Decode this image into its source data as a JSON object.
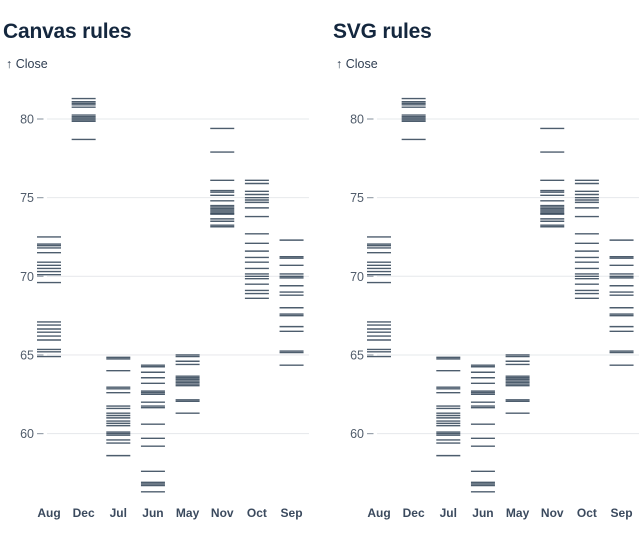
{
  "figures": [
    {
      "title": "Canvas rules",
      "y_axis_label": "↑ Close",
      "renderer": "canvas"
    },
    {
      "title": "SVG rules",
      "y_axis_label": "↑ Close",
      "renderer": "svg"
    }
  ],
  "chart_data": {
    "type": "tick",
    "mark": "horizontal-rule-per-day",
    "title": "Close price ticks by month (rendered twice: canvas and svg)",
    "xlabel": "",
    "ylabel": "Close",
    "categories": [
      "Aug",
      "Dec",
      "Jul",
      "Jun",
      "May",
      "Nov",
      "Oct",
      "Sep"
    ],
    "yticks": [
      80,
      75,
      70,
      65,
      60
    ],
    "ylim": [
      56.0,
      81.5
    ],
    "grid": true,
    "series": {
      "Aug": [
        72.5,
        72.05,
        71.95,
        71.8,
        71.5,
        70.9,
        70.7,
        70.5,
        70.3,
        70.1,
        69.6,
        67.1,
        66.9,
        66.65,
        66.45,
        66.2,
        65.95,
        65.35,
        65.2,
        64.9
      ],
      "Dec": [
        81.3,
        81.1,
        81.0,
        80.9,
        80.75,
        80.25,
        80.15,
        80.05,
        79.95,
        79.85,
        78.7
      ],
      "Jul": [
        64.85,
        64.75,
        64.0,
        62.95,
        62.85,
        62.6,
        61.75,
        61.6,
        61.3,
        61.15,
        61.0,
        60.8,
        60.65,
        60.5,
        60.1,
        60.0,
        59.9,
        59.6,
        59.4,
        58.6
      ],
      "Jun": [
        64.35,
        64.25,
        63.9,
        63.55,
        63.2,
        62.7,
        62.6,
        62.5,
        62.0,
        61.75,
        61.65,
        60.6,
        59.7,
        59.2,
        57.6,
        56.9,
        56.8,
        56.7,
        56.3
      ],
      "May": [
        65.0,
        64.9,
        64.6,
        64.4,
        63.65,
        63.55,
        63.45,
        63.35,
        63.25,
        63.15,
        63.05,
        62.15,
        62.05,
        61.3
      ],
      "Nov": [
        79.4,
        77.9,
        76.1,
        75.45,
        75.35,
        75.15,
        74.8,
        74.5,
        74.4,
        74.3,
        74.2,
        74.1,
        74.0,
        73.95,
        73.65,
        73.5,
        73.25,
        73.15
      ],
      "Oct": [
        76.1,
        75.9,
        75.4,
        75.2,
        75.0,
        74.85,
        74.7,
        74.35,
        73.8,
        72.7,
        72.1,
        71.6,
        71.2,
        70.9,
        70.5,
        70.15,
        70.0,
        69.85,
        69.5,
        69.1,
        68.9,
        68.6
      ],
      "Sep": [
        72.3,
        71.25,
        71.15,
        70.7,
        70.15,
        70.0,
        69.9,
        69.4,
        69.0,
        68.8,
        68.0,
        67.6,
        67.5,
        66.8,
        66.5,
        65.25,
        65.15,
        64.35
      ]
    },
    "colors": {
      "rule": "#2e4154",
      "grid": "#e6e8eb",
      "tick_dash": "#9aa3ad",
      "axis_text": "#505c6b",
      "month_text": "#3b4a5e",
      "title_text": "#14273e",
      "background": "#ffffff"
    },
    "legend": null
  }
}
